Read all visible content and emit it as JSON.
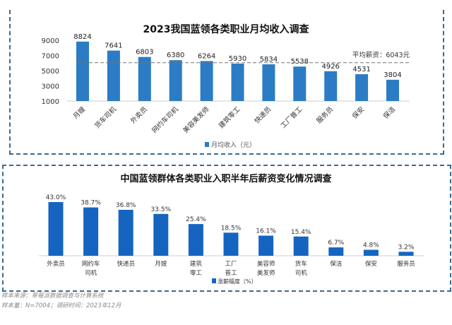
{
  "chart_data": [
    {
      "type": "bar",
      "title": "2023我国蓝领各类职业月均收入调查",
      "categories": [
        "月嫂",
        "货车司机",
        "外卖员",
        "网约车司机",
        "美容美发师",
        "建筑零工",
        "快递员",
        "工厂普工",
        "服务员",
        "保安",
        "保洁"
      ],
      "series": [
        {
          "name": "月均收入（元）",
          "values": [
            8824,
            7641,
            6803,
            6380,
            6264,
            5930,
            5834,
            5538,
            4926,
            4531,
            3804
          ]
        }
      ],
      "ylim": [
        1000,
        9000
      ],
      "yticks": [
        1000,
        3000,
        5000,
        7000,
        9000
      ],
      "reference_line": {
        "value": 6043,
        "label": "平均薪资：6043元",
        "style": "dashed"
      },
      "legend": "bottom",
      "color": "#2b7cc4"
    },
    {
      "type": "bar",
      "title": "中国蓝领群体各类职业入职半年后薪资变化情况调查",
      "categories": [
        [
          "外卖员"
        ],
        [
          "网约车",
          "司机"
        ],
        [
          "快递员"
        ],
        [
          "月嫂"
        ],
        [
          "建筑",
          "零工"
        ],
        [
          "工厂",
          "普工"
        ],
        [
          "美容师",
          "美发师"
        ],
        [
          "货车",
          "司机"
        ],
        [
          "保洁"
        ],
        [
          "保安"
        ],
        [
          "服务员"
        ]
      ],
      "series": [
        {
          "name": "涨薪幅度（%）",
          "values": [
            43.0,
            38.7,
            36.8,
            33.5,
            25.4,
            18.5,
            16.1,
            15.4,
            6.7,
            4.8,
            3.2
          ]
        }
      ],
      "data_labels": [
        "43.0%",
        "38.7%",
        "36.8%",
        "33.5%",
        "25.4%",
        "18.5%",
        "16.1%",
        "15.4%",
        "6.7%",
        "4.8%",
        "3.2%"
      ],
      "ylim": [
        0,
        43
      ],
      "legend": "bottom",
      "color": "#1565c0"
    }
  ],
  "footnotes": [
    "样本来源：草莓派数据调查与计算系统",
    "样本量：N=7004；调研时间：2023年12月"
  ]
}
